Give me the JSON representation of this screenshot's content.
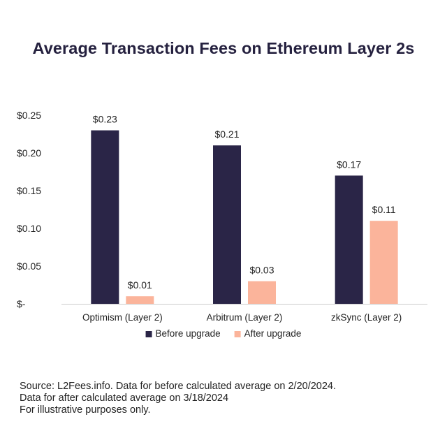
{
  "chart_data": {
    "type": "bar",
    "title": "Average Transaction Fees on Ethereum Layer 2s",
    "categories": [
      "Optimism (Layer 2)",
      "Arbitrum (Layer 2)",
      "zkSync (Layer 2)"
    ],
    "series": [
      {
        "name": "Before upgrade",
        "values": [
          0.23,
          0.21,
          0.17
        ],
        "labels": [
          "$0.23",
          "$0.21",
          "$0.17"
        ],
        "color": "#2a2547"
      },
      {
        "name": "After upgrade",
        "values": [
          0.01,
          0.03,
          0.11
        ],
        "labels": [
          "$0.01",
          "$0.03",
          "$0.11"
        ],
        "color": "#fbb49b"
      }
    ],
    "y_ticks": [
      {
        "value": 0,
        "label": "$-"
      },
      {
        "value": 0.05,
        "label": "$0.05"
      },
      {
        "value": 0.1,
        "label": "$0.10"
      },
      {
        "value": 0.15,
        "label": "$0.15"
      },
      {
        "value": 0.2,
        "label": "$0.20"
      },
      {
        "value": 0.25,
        "label": "$0.25"
      }
    ],
    "ylim": [
      0,
      0.25
    ],
    "grid": false,
    "legend_position": "bottom",
    "xlabel": "",
    "ylabel": ""
  },
  "notes": [
    "Source: L2Fees.info. Data for before calculated average on 2/20/2024.",
    "Data for after calculated average on 3/18/2024",
    "For illustrative purposes only."
  ]
}
